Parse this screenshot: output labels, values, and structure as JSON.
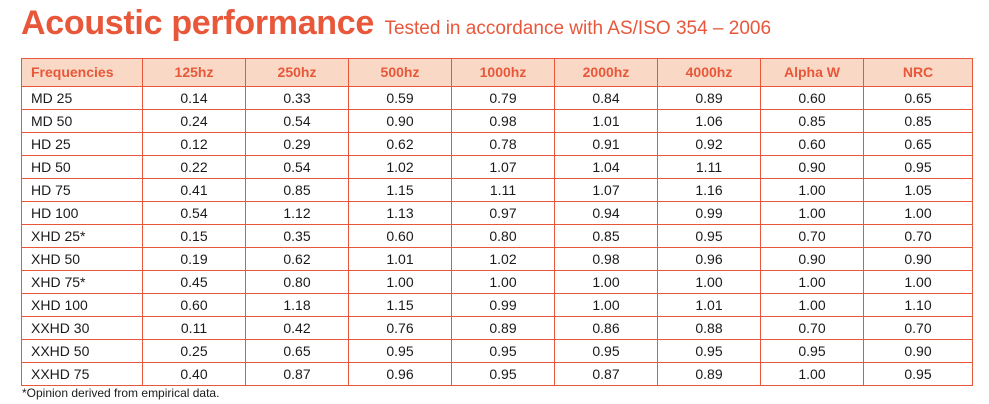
{
  "header": {
    "title": "Acoustic performance",
    "subtitle": "Tested in accordance with AS/ISO 354 – 2006"
  },
  "table": {
    "columns": [
      "Frequencies",
      "125hz",
      "250hz",
      "500hz",
      "1000hz",
      "2000hz",
      "4000hz",
      "Alpha W",
      "NRC"
    ],
    "rows": [
      [
        "MD 25",
        "0.14",
        "0.33",
        "0.59",
        "0.79",
        "0.84",
        "0.89",
        "0.60",
        "0.65"
      ],
      [
        "MD 50",
        "0.24",
        "0.54",
        "0.90",
        "0.98",
        "1.01",
        "1.06",
        "0.85",
        "0.85"
      ],
      [
        "HD 25",
        "0.12",
        "0.29",
        "0.62",
        "0.78",
        "0.91",
        "0.92",
        "0.60",
        "0.65"
      ],
      [
        "HD 50",
        "0.22",
        "0.54",
        "1.02",
        "1.07",
        "1.04",
        "1.11",
        "0.90",
        "0.95"
      ],
      [
        "HD 75",
        "0.41",
        "0.85",
        "1.15",
        "1.11",
        "1.07",
        "1.16",
        "1.00",
        "1.05"
      ],
      [
        "HD 100",
        "0.54",
        "1.12",
        "1.13",
        "0.97",
        "0.94",
        "0.99",
        "1.00",
        "1.00"
      ],
      [
        "XHD 25*",
        "0.15",
        "0.35",
        "0.60",
        "0.80",
        "0.85",
        "0.95",
        "0.70",
        "0.70"
      ],
      [
        "XHD 50",
        "0.19",
        "0.62",
        "1.01",
        "1.02",
        "0.98",
        "0.96",
        "0.90",
        "0.90"
      ],
      [
        "XHD 75*",
        "0.45",
        "0.80",
        "1.00",
        "1.00",
        "1.00",
        "1.00",
        "1.00",
        "1.00"
      ],
      [
        "XHD 100",
        "0.60",
        "1.18",
        "1.15",
        "0.99",
        "1.00",
        "1.01",
        "1.00",
        "1.10"
      ],
      [
        "XXHD 30",
        "0.11",
        "0.42",
        "0.76",
        "0.89",
        "0.86",
        "0.88",
        "0.70",
        "0.70"
      ],
      [
        "XXHD 50",
        "0.25",
        "0.65",
        "0.95",
        "0.95",
        "0.95",
        "0.95",
        "0.95",
        "0.90"
      ],
      [
        "XXHD 75",
        "0.40",
        "0.87",
        "0.96",
        "0.95",
        "0.87",
        "0.89",
        "1.00",
        "0.95"
      ]
    ]
  },
  "footnote": "*Opinion derived from empirical data.",
  "colors": {
    "accent": "#e8573a",
    "header_fill": "#f9d9c6",
    "text": "#1a1a1a"
  }
}
